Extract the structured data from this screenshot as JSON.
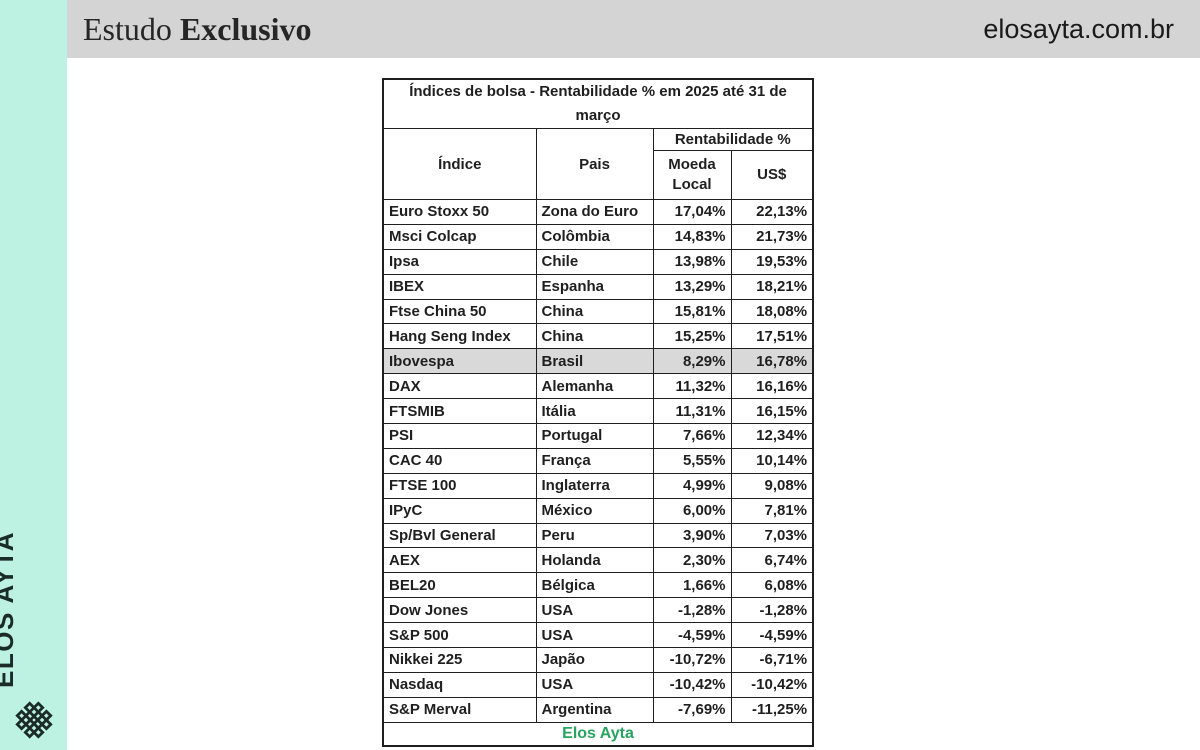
{
  "brand": {
    "vertical_label": "ELOS AYTA",
    "logo_icon": "woven-diamond-lattice-icon"
  },
  "header": {
    "title_regular": "Estudo",
    "title_bold": "Exclusivo",
    "website": "elosayta.com.br"
  },
  "colors": {
    "sidebar_mint": "#bdf2e2",
    "header_gray": "#d4d4d4",
    "row_highlight_gray": "#d9d9d9",
    "brand_green": "#27a45f",
    "text_dark": "#1f1f1f"
  },
  "chart_data": {
    "type": "table",
    "title": "Índices de bolsa - Rentabilidade % em 2025 até 31 de março",
    "column_headers": {
      "index": "Índice",
      "country": "Pais",
      "group": "Rentabilidade %",
      "local": "Moeda Local",
      "usd": "US$"
    },
    "rows": [
      {
        "index": "Euro Stoxx 50",
        "country": "Zona do Euro",
        "local": "17,04%",
        "usd": "22,13%",
        "highlight": false
      },
      {
        "index": "Msci Colcap",
        "country": "Colômbia",
        "local": "14,83%",
        "usd": "21,73%",
        "highlight": false
      },
      {
        "index": "Ipsa",
        "country": "Chile",
        "local": "13,98%",
        "usd": "19,53%",
        "highlight": false
      },
      {
        "index": "IBEX",
        "country": "Espanha",
        "local": "13,29%",
        "usd": "18,21%",
        "highlight": false
      },
      {
        "index": "Ftse China 50",
        "country": "China",
        "local": "15,81%",
        "usd": "18,08%",
        "highlight": false
      },
      {
        "index": "Hang Seng Index",
        "country": "China",
        "local": "15,25%",
        "usd": "17,51%",
        "highlight": false
      },
      {
        "index": "Ibovespa",
        "country": "Brasil",
        "local": "8,29%",
        "usd": "16,78%",
        "highlight": true
      },
      {
        "index": "DAX",
        "country": "Alemanha",
        "local": "11,32%",
        "usd": "16,16%",
        "highlight": false
      },
      {
        "index": "FTSMIB",
        "country": "Itália",
        "local": "11,31%",
        "usd": "16,15%",
        "highlight": false
      },
      {
        "index": "PSI",
        "country": "Portugal",
        "local": "7,66%",
        "usd": "12,34%",
        "highlight": false
      },
      {
        "index": "CAC 40",
        "country": "França",
        "local": "5,55%",
        "usd": "10,14%",
        "highlight": false
      },
      {
        "index": "FTSE 100",
        "country": "Inglaterra",
        "local": "4,99%",
        "usd": "9,08%",
        "highlight": false
      },
      {
        "index": "IPyC",
        "country": "México",
        "local": "6,00%",
        "usd": "7,81%",
        "highlight": false
      },
      {
        "index": "Sp/Bvl General",
        "country": "Peru",
        "local": "3,90%",
        "usd": "7,03%",
        "highlight": false
      },
      {
        "index": "AEX",
        "country": "Holanda",
        "local": "2,30%",
        "usd": "6,74%",
        "highlight": false
      },
      {
        "index": "BEL20",
        "country": "Bélgica",
        "local": "1,66%",
        "usd": "6,08%",
        "highlight": false
      },
      {
        "index": "Dow Jones",
        "country": "USA",
        "local": "-1,28%",
        "usd": "-1,28%",
        "highlight": false
      },
      {
        "index": "S&P 500",
        "country": "USA",
        "local": "-4,59%",
        "usd": "-4,59%",
        "highlight": false
      },
      {
        "index": "Nikkei 225",
        "country": "Japão",
        "local": "-10,72%",
        "usd": "-6,71%",
        "highlight": false
      },
      {
        "index": "Nasdaq",
        "country": "USA",
        "local": "-10,42%",
        "usd": "-10,42%",
        "highlight": false
      },
      {
        "index": "S&P Merval",
        "country": "Argentina",
        "local": "-7,69%",
        "usd": "-11,25%",
        "highlight": false
      }
    ],
    "footer": "Elos Ayta",
    "highlighted_index": "Ibovespa",
    "layout_hints": {
      "highlight_style": "gray-row",
      "numbers_alignment": "right",
      "grid": "all-borders"
    }
  }
}
